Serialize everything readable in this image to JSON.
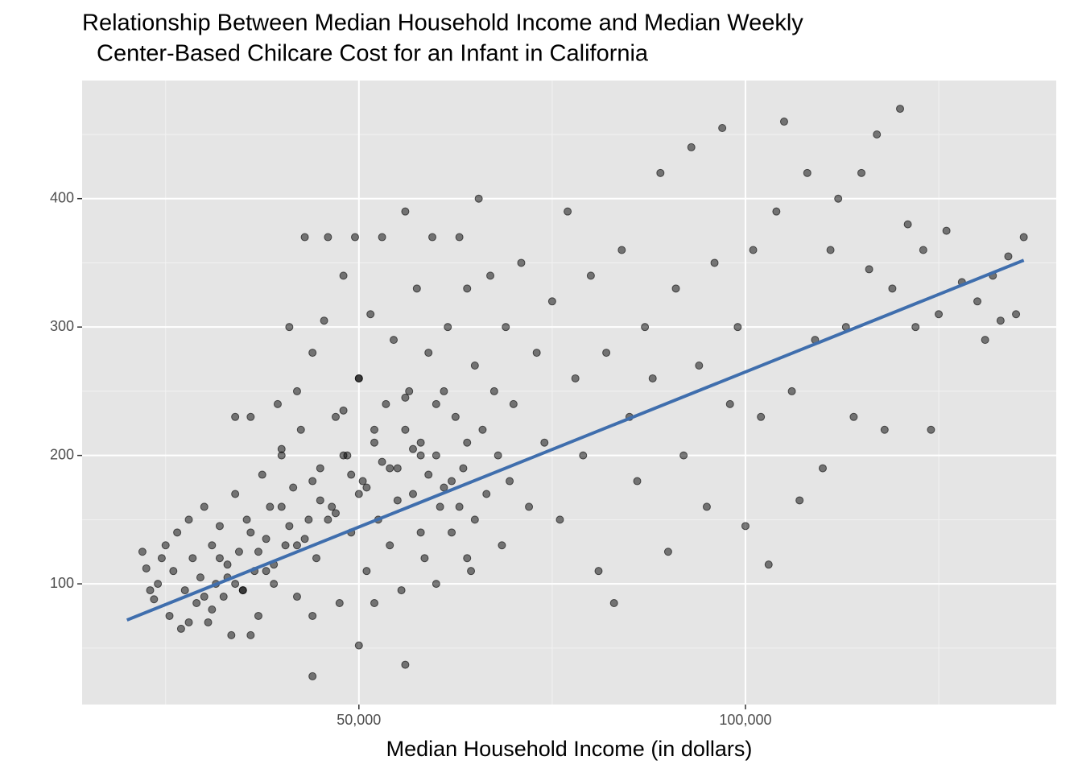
{
  "chart_data": {
    "type": "scatter",
    "title": [
      "Relationship Between Median Household Income and Median Weekly",
      "Center-Based Chilcare Cost for an Infant in California"
    ],
    "x_label": "Median Household Income (in dollars)",
    "xlim": [
      14200,
      140200
    ],
    "ylim": [
      6,
      492
    ],
    "xticks": [
      {
        "value": 50000,
        "label": "50,000"
      },
      {
        "value": 100000,
        "label": "100,000"
      }
    ],
    "yticks": [
      100,
      200,
      300,
      400
    ],
    "grid": true,
    "color": "#000000",
    "x": [
      22000,
      22500,
      23000,
      23500,
      24000,
      24500,
      25000,
      25500,
      26000,
      26500,
      27000,
      27500,
      28000,
      28500,
      29000,
      29500,
      30000,
      30500,
      31000,
      31500,
      32000,
      32500,
      33000,
      33500,
      34000,
      34500,
      35000,
      35500,
      36000,
      36500,
      37000,
      37500,
      38000,
      38500,
      39000,
      39500,
      40000,
      40500,
      41000,
      41500,
      42000,
      42500,
      43000,
      43500,
      44000,
      44500,
      45000,
      45500,
      46000,
      46500,
      47000,
      47500,
      48000,
      48500,
      49000,
      49500,
      50000,
      50500,
      51000,
      51500,
      52000,
      52500,
      53000,
      53500,
      54000,
      54500,
      55000,
      55500,
      56000,
      56500,
      57000,
      57500,
      58000,
      58500,
      59000,
      59500,
      60000,
      60500,
      61000,
      61500,
      62000,
      62500,
      63000,
      63500,
      64000,
      64500,
      65000,
      65500,
      66000,
      66500,
      67000,
      67500,
      68000,
      68500,
      69000,
      69500,
      70000,
      71000,
      72000,
      73000,
      74000,
      75000,
      76000,
      77000,
      78000,
      79000,
      80000,
      81000,
      82000,
      83000,
      84000,
      85000,
      86000,
      87000,
      88000,
      89000,
      90000,
      91000,
      92000,
      93000,
      94000,
      95000,
      96000,
      97000,
      98000,
      99000,
      100000,
      101000,
      102000,
      103000,
      104000,
      105000,
      106000,
      107000,
      108000,
      109000,
      110000,
      111000,
      112000,
      113000,
      114000,
      115000,
      116000,
      117000,
      118000,
      119000,
      120000,
      121000,
      122000,
      123000,
      124000,
      125000,
      126000,
      128000,
      130000,
      131000,
      132000,
      133000,
      134000,
      135000,
      136000,
      44000,
      56000,
      50000,
      30000,
      32000,
      34000,
      36000,
      38000,
      40000,
      42000,
      44000,
      46000,
      48000,
      50000,
      52000,
      54000,
      56000,
      58000,
      60000,
      62000,
      64000,
      31000,
      33000,
      35000,
      37000,
      39000,
      41000,
      43000,
      45000,
      47000,
      49000,
      51000,
      53000,
      55000,
      57000,
      59000,
      61000,
      63000,
      65000,
      28000,
      36000,
      44000,
      52000,
      60000,
      40000,
      48000,
      56000,
      64000,
      34000,
      42000,
      50000,
      58000
    ],
    "y": [
      125,
      112,
      95,
      88,
      100,
      120,
      130,
      75,
      110,
      140,
      65,
      95,
      150,
      120,
      85,
      105,
      160,
      70,
      130,
      100,
      145,
      90,
      115,
      60,
      170,
      125,
      95,
      150,
      230,
      110,
      75,
      185,
      135,
      160,
      100,
      240,
      205,
      130,
      300,
      175,
      90,
      220,
      370,
      150,
      280,
      120,
      190,
      305,
      370,
      160,
      230,
      85,
      340,
      200,
      140,
      370,
      260,
      180,
      110,
      310,
      220,
      150,
      370,
      240,
      130,
      290,
      190,
      95,
      390,
      250,
      170,
      330,
      210,
      120,
      280,
      370,
      200,
      160,
      250,
      300,
      140,
      230,
      370,
      190,
      330,
      110,
      270,
      400,
      220,
      170,
      340,
      250,
      200,
      130,
      300,
      180,
      240,
      350,
      160,
      280,
      210,
      320,
      150,
      390,
      260,
      200,
      340,
      110,
      280,
      85,
      360,
      230,
      180,
      300,
      260,
      420,
      125,
      330,
      200,
      440,
      270,
      160,
      350,
      455,
      240,
      300,
      145,
      360,
      230,
      115,
      390,
      460,
      250,
      165,
      420,
      290,
      190,
      360,
      400,
      300,
      230,
      420,
      345,
      450,
      220,
      330,
      470,
      380,
      300,
      360,
      220,
      310,
      375,
      335,
      320,
      290,
      340,
      305,
      355,
      310,
      370,
      28,
      37,
      52,
      90,
      120,
      100,
      140,
      110,
      160,
      130,
      180,
      150,
      200,
      170,
      210,
      190,
      220,
      200,
      240,
      180,
      210,
      80,
      105,
      95,
      125,
      115,
      145,
      135,
      165,
      155,
      185,
      175,
      195,
      165,
      205,
      185,
      175,
      160,
      150,
      70,
      60,
      75,
      85,
      100,
      200,
      235,
      245,
      120,
      230,
      250,
      260,
      140
    ],
    "trend": {
      "x": [
        20000,
        136000
      ],
      "y": [
        71.8,
        352
      ],
      "color": "#3f6ead"
    }
  }
}
